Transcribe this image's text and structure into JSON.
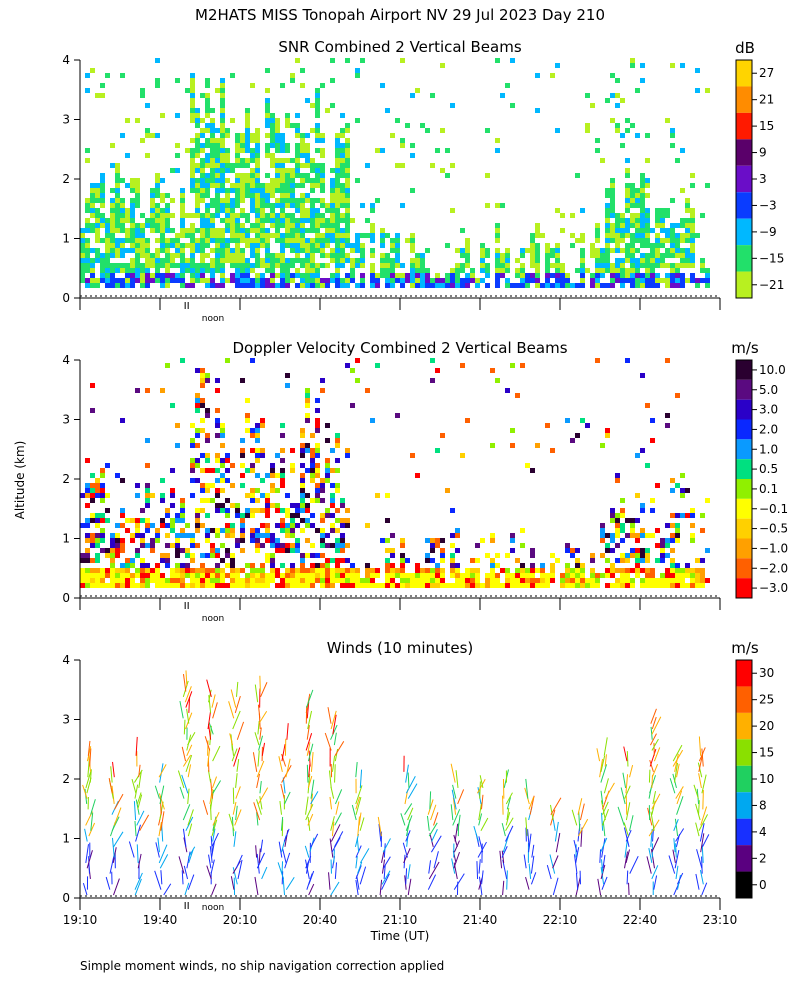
{
  "figure": {
    "title": "M2HATS MISS Tonopah Airport NV  29 Jul 2023 Day 210",
    "y_axis_label": "Altitude (km)",
    "x_axis_label": "Time (UT)",
    "footnote": "Simple moment winds, no ship navigation correction applied",
    "noon_label": "noon"
  },
  "chart_data": [
    {
      "type": "heatmap",
      "title": "SNR Combined 2 Vertical Beams",
      "colorbar_unit": "dB",
      "colorbar_ticks": [
        "27",
        "21",
        "15",
        "9",
        "3",
        "−3",
        "−9",
        "−15",
        "−21"
      ],
      "colorbar_colors": [
        "#ffd400",
        "#ff8c00",
        "#ff1a00",
        "#5a006a",
        "#6a0dc8",
        "#0a3cff",
        "#00b8ff",
        "#22e06a",
        "#b8f020"
      ],
      "xlim": [
        "19:10",
        "23:10"
      ],
      "ylim": [
        0,
        4
      ],
      "y_ticks": [
        "0",
        "1",
        "2",
        "3",
        "4"
      ],
      "x_tick_labels": [],
      "noon_marker": "19:50"
    },
    {
      "type": "heatmap",
      "title": "Doppler Velocity Combined 2 Vertical Beams",
      "colorbar_unit": "m/s",
      "colorbar_ticks": [
        "10.0",
        "5.0",
        "3.0",
        "2.0",
        "1.0",
        "0.5",
        "0.1",
        "−0.1",
        "−0.5",
        "−1.0",
        "−2.0",
        "−3.0"
      ],
      "colorbar_colors": [
        "#2a0030",
        "#5a0a80",
        "#2a00c8",
        "#0a28ff",
        "#0a9aff",
        "#00e080",
        "#90f000",
        "#ffff00",
        "#ffd000",
        "#ffa000",
        "#ff6000",
        "#ff0000"
      ],
      "xlim": [
        "19:10",
        "23:10"
      ],
      "ylim": [
        0,
        4
      ],
      "y_ticks": [
        "0",
        "1",
        "2",
        "3",
        "4"
      ],
      "x_tick_labels": [],
      "noon_marker": "19:50"
    },
    {
      "type": "scatter",
      "title": "Winds (10 minutes)",
      "colorbar_unit": "m/s",
      "colorbar_ticks": [
        "30",
        "25",
        "20",
        "15",
        "10",
        "8",
        "4",
        "2",
        "0"
      ],
      "colorbar_colors": [
        "#ff0000",
        "#ff6000",
        "#ffb000",
        "#8ae000",
        "#20d060",
        "#00a8f0",
        "#1830ff",
        "#5a0080",
        "#000000"
      ],
      "xlim": [
        "19:10",
        "23:10"
      ],
      "ylim": [
        0,
        4
      ],
      "y_ticks": [
        "0",
        "1",
        "2",
        "3",
        "4"
      ],
      "x_tick_labels": [
        "19:10",
        "19:40",
        "20:10",
        "20:40",
        "21:10",
        "21:40",
        "22:10",
        "22:40",
        "23:10"
      ],
      "noon_marker": "19:50"
    }
  ]
}
